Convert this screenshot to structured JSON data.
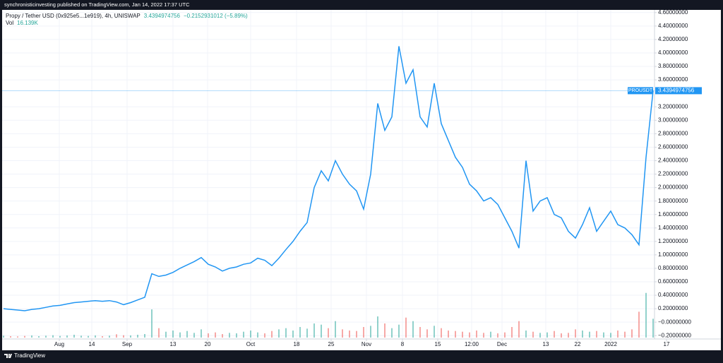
{
  "header": {
    "publisher": "synchronisticinvesting published on TradingView.com, Jan 14, 2022 17:37 UTC"
  },
  "footer": {
    "brand": "TradingView"
  },
  "chart_data": {
    "type": "line",
    "symbol": "Propy / Tether USD (0x925e5...1e919), 4h, UNISWAP",
    "last_price": 3.4394974756,
    "change": "−0.2152931012 (−5.89%)",
    "series": [
      {
        "name": "PROUSDT",
        "color": "#2196f3",
        "values": [
          0.2,
          0.19,
          0.18,
          0.17,
          0.19,
          0.2,
          0.22,
          0.24,
          0.25,
          0.27,
          0.29,
          0.3,
          0.31,
          0.32,
          0.31,
          0.32,
          0.3,
          0.26,
          0.29,
          0.33,
          0.37,
          0.72,
          0.68,
          0.7,
          0.74,
          0.8,
          0.85,
          0.9,
          0.96,
          0.86,
          0.82,
          0.76,
          0.8,
          0.82,
          0.86,
          0.88,
          0.95,
          0.92,
          0.84,
          0.95,
          1.08,
          1.2,
          1.35,
          1.48,
          2.0,
          2.25,
          2.1,
          2.4,
          2.2,
          2.05,
          1.95,
          1.68,
          2.2,
          3.25,
          2.85,
          3.05,
          4.1,
          3.55,
          3.75,
          3.05,
          2.9,
          3.55,
          2.95,
          2.7,
          2.45,
          2.3,
          2.05,
          1.95,
          1.8,
          1.85,
          1.75,
          1.55,
          1.35,
          1.1,
          2.4,
          1.65,
          1.8,
          1.85,
          1.6,
          1.55,
          1.35,
          1.25,
          1.45,
          1.7,
          1.35,
          1.5,
          1.65,
          1.45,
          1.4,
          1.3,
          1.15,
          2.45,
          3.44
        ]
      }
    ],
    "volume": {
      "name": "Vol",
      "last_label": "16.139K",
      "up_color": "#26a69a",
      "down_color": "#ef5350",
      "values": [
        8,
        6,
        5,
        7,
        9,
        6,
        8,
        10,
        7,
        9,
        12,
        8,
        7,
        9,
        6,
        8,
        14,
        10,
        9,
        12,
        15,
        120,
        40,
        25,
        30,
        22,
        28,
        20,
        35,
        18,
        22,
        15,
        20,
        18,
        25,
        30,
        22,
        18,
        28,
        35,
        40,
        30,
        45,
        38,
        60,
        55,
        40,
        70,
        35,
        30,
        28,
        45,
        50,
        90,
        60,
        40,
        55,
        85,
        70,
        45,
        35,
        50,
        40,
        30,
        28,
        25,
        22,
        30,
        20,
        25,
        18,
        22,
        45,
        70,
        30,
        25,
        20,
        22,
        28,
        18,
        20,
        35,
        30,
        25,
        28,
        22,
        20,
        30,
        25,
        35,
        110,
        190,
        80
      ],
      "ylim": [
        0,
        1400
      ]
    },
    "xlim": [
      0,
      92.2
    ],
    "xticks": [
      {
        "value": 7.9,
        "label": "Aug"
      },
      {
        "value": 12.5,
        "label": "14"
      },
      {
        "value": 17.5,
        "label": "Sep"
      },
      {
        "value": 24,
        "label": "13"
      },
      {
        "value": 28.9,
        "label": "20"
      },
      {
        "value": 35,
        "label": "Oct"
      },
      {
        "value": 41.5,
        "label": "18"
      },
      {
        "value": 46.4,
        "label": "25"
      },
      {
        "value": 51.4,
        "label": "Nov"
      },
      {
        "value": 56.5,
        "label": "8"
      },
      {
        "value": 61.5,
        "label": "15"
      },
      {
        "value": 66.3,
        "label": "12:00"
      },
      {
        "value": 70.6,
        "label": "Dec"
      },
      {
        "value": 76.8,
        "label": "13"
      },
      {
        "value": 81.3,
        "label": "22"
      },
      {
        "value": 86,
        "label": "2022"
      },
      {
        "value": 93.9,
        "label": "17"
      }
    ],
    "ylim": [
      -0.25,
      4.64
    ],
    "yticks": [
      {
        "value": 4.6,
        "label": "4.60000000"
      },
      {
        "value": 4.4,
        "label": "4.40000000"
      },
      {
        "value": 4.2,
        "label": "4.20000000"
      },
      {
        "value": 4.0,
        "label": "4.00000000"
      },
      {
        "value": 3.8,
        "label": "3.80000000"
      },
      {
        "value": 3.6,
        "label": "3.60000000"
      },
      {
        "value": 3.2,
        "label": "3.20000000"
      },
      {
        "value": 3.0,
        "label": "3.00000000"
      },
      {
        "value": 2.8,
        "label": "2.80000000"
      },
      {
        "value": 2.6,
        "label": "2.60000000"
      },
      {
        "value": 2.4,
        "label": "2.40000000"
      },
      {
        "value": 2.2,
        "label": "2.20000000"
      },
      {
        "value": 2.0,
        "label": "2.00000000"
      },
      {
        "value": 1.8,
        "label": "1.80000000"
      },
      {
        "value": 1.6,
        "label": "1.60000000"
      },
      {
        "value": 1.4,
        "label": "1.40000000"
      },
      {
        "value": 1.2,
        "label": "1.20000000"
      },
      {
        "value": 1.0,
        "label": "1.00000000"
      },
      {
        "value": 0.8,
        "label": "0.80000000"
      },
      {
        "value": 0.6,
        "label": "0.60000000"
      },
      {
        "value": 0.4,
        "label": "0.40000000"
      },
      {
        "value": 0.2,
        "label": "0.20000000"
      },
      {
        "value": 0,
        "label": "−0.00000000"
      },
      {
        "value": -0.2,
        "label": "−0.20000000"
      }
    ],
    "grid": true
  }
}
